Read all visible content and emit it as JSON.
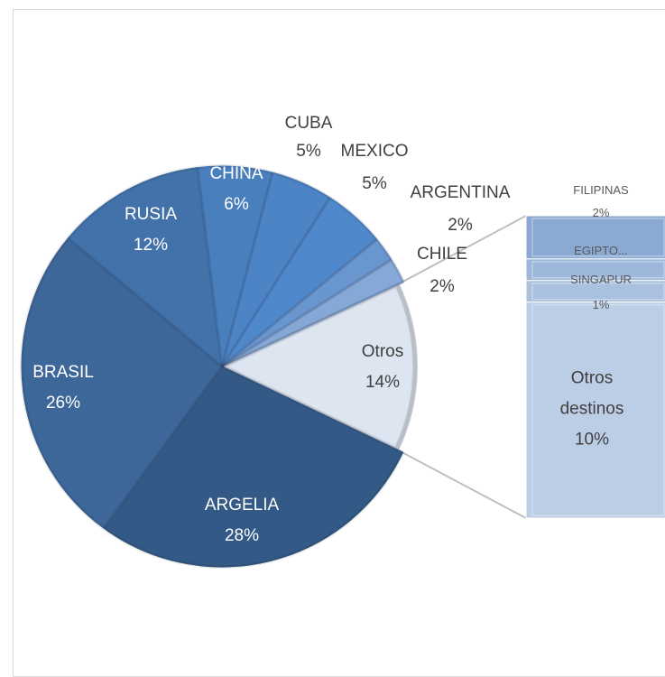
{
  "chart_data": {
    "type": "pie",
    "subtype": "bar-of-pie",
    "title": "",
    "pie": [
      {
        "name": "ARGELIA",
        "label": "28%",
        "value": 28,
        "color": "#335a86"
      },
      {
        "name": "BRASIL",
        "label": "26%",
        "value": 26,
        "color": "#3d6798"
      },
      {
        "name": "RUSIA",
        "label": "12%",
        "value": 12,
        "color": "#4372ab"
      },
      {
        "name": "CHINA",
        "label": "6%",
        "value": 6,
        "color": "#4a7fbe"
      },
      {
        "name": "CUBA",
        "label": "5%",
        "value": 5,
        "color": "#4d84c6"
      },
      {
        "name": "MEXICO",
        "label": "5%",
        "value": 5,
        "color": "#5088cc"
      },
      {
        "name": "ARGENTINA",
        "label": "2%",
        "value": 2,
        "color": "#6a96cf"
      },
      {
        "name": "CHILE",
        "label": "2%",
        "value": 2,
        "color": "#85a8d6"
      },
      {
        "name": "Otros",
        "label": "14%",
        "value": 14,
        "color": "#dde5f1"
      }
    ],
    "bar": [
      {
        "name": "FILIPINAS",
        "label": "2%",
        "value": 2,
        "color": "#8aaad3"
      },
      {
        "name": "EGIPTO...",
        "label": "",
        "value": 1,
        "color": "#9db8db"
      },
      {
        "name": "SINGAPUR",
        "label": "1%",
        "value": 1,
        "color": "#a9c0df"
      },
      {
        "name": "Otros destinos",
        "label": "10%",
        "value": 10,
        "color": "#bccde6"
      }
    ]
  }
}
